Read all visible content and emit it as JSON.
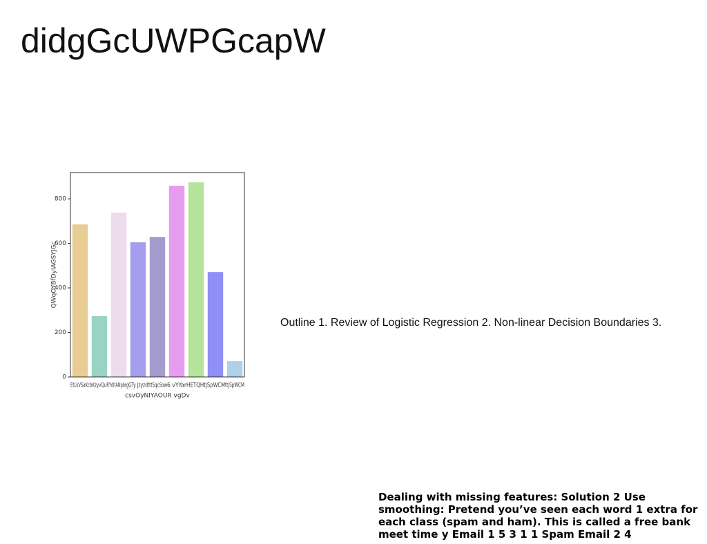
{
  "title": "didgGcUWPGcapW",
  "body_text": "Outline 1. Review of Logistic Regression 2. Non-linear Decision Boundaries 3.",
  "footer_text": "Dealing with missing features: Solution 2 Use smoothing: Pretend you’ve seen each word 1 extra for each class (spam and ham). This is called a free bank meet time y Email 1 5 3 1 1 Spam Email 2 4",
  "chart_data": {
    "type": "bar",
    "xlabel": "csvOyNIYAOUR vgDv",
    "ylabel": "QWqOYBfDyIAGSYJGc",
    "categories": [
      "EtLkVSaKc",
      "bKzyvQuR",
      "YdltANpbrg",
      "GTy Jzyzd",
      "tttSqcSow",
      "6 vYYar",
      "HETQHt",
      "jSpWCM",
      "ttjSpWCM"
    ],
    "values": [
      685,
      273,
      738,
      605,
      629,
      859,
      874,
      471,
      71
    ],
    "colors": [
      "#e8cd94",
      "#9ad3c3",
      "#ecdcec",
      "#a59ded",
      "#a49ccc",
      "#e89cf0",
      "#b4e49a",
      "#8f8ff5",
      "#aed0e8"
    ],
    "ylim": [
      0,
      918
    ],
    "yticks": [
      0,
      200,
      400,
      600,
      800
    ],
    "grid": false
  }
}
